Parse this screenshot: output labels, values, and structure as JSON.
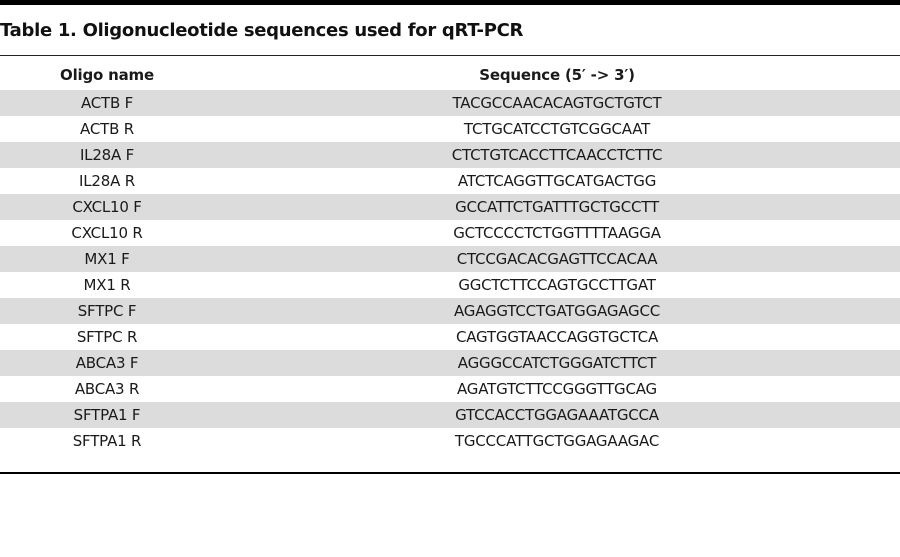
{
  "title": "Table 1. Oligonucleotide sequences used for qRT-PCR",
  "columns": {
    "name": "Oligo name",
    "sequence": "Sequence (5′ -> 3′)"
  },
  "rows": [
    {
      "name": "ACTB F",
      "sequence": "TACGCCAACACAGTGCTGTCT"
    },
    {
      "name": "ACTB R",
      "sequence": "TCTGCATCCTGTCGGCAAT"
    },
    {
      "name": "IL28A F",
      "sequence": "CTCTGTCACCTTCAACCTCTTC"
    },
    {
      "name": "IL28A R",
      "sequence": "ATCTCAGGTTGCATGACTGG"
    },
    {
      "name": "CXCL10 F",
      "sequence": "GCCATTCTGATTTGCTGCCTT"
    },
    {
      "name": "CXCL10 R",
      "sequence": "GCTCCCCTCTGGTTTTAAGGA"
    },
    {
      "name": "MX1 F",
      "sequence": "CTCCGACACGAGTTCCACAA"
    },
    {
      "name": "MX1 R",
      "sequence": "GGCTCTTCCAGTGCCTTGAT"
    },
    {
      "name": "SFTPC F",
      "sequence": "AGAGGTCCTGATGGAGAGCC"
    },
    {
      "name": "SFTPC R",
      "sequence": "CAGTGGTAACCAGGTGCTCA"
    },
    {
      "name": "ABCA3 F",
      "sequence": "AGGGCCATCTGGGATCTTCT"
    },
    {
      "name": "ABCA3 R",
      "sequence": "AGATGTCTTCCGGGTTGCAG"
    },
    {
      "name": "SFTPA1 F",
      "sequence": "GTCCACCTGGAGAAATGCCA"
    },
    {
      "name": "SFTPA1 R",
      "sequence": "TGCCCATTGCTGGAGAAGAC"
    }
  ],
  "colors": {
    "shaded_row": "#dcdcdc",
    "rule": "#000000",
    "text": "#1a1a1a"
  }
}
